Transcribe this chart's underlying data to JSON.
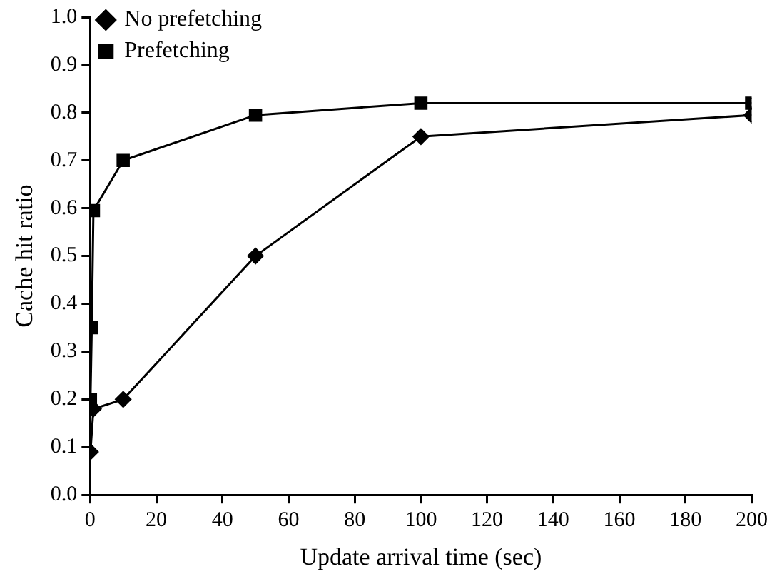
{
  "chart_data": {
    "type": "line",
    "xlabel": "Update arrival time (sec)",
    "ylabel": "Cache hit ratio",
    "xlim": [
      0,
      200
    ],
    "xticks": [
      0,
      20,
      40,
      60,
      80,
      100,
      120,
      140,
      160,
      180,
      200
    ],
    "ylim": [
      0,
      1
    ],
    "yticks": [
      {
        "value": 0,
        "label": "0.0"
      },
      0.1,
      0.2,
      0.3,
      0.4,
      0.5,
      0.6,
      0.7,
      0.8,
      0.9,
      {
        "value": 1,
        "label": "1.0"
      }
    ],
    "grid": false,
    "legend": "top left",
    "line_style": "solid",
    "series": [
      {
        "name": "No prefetching",
        "color": "#000000",
        "marker": "diamond",
        "x": [
          0.1,
          1,
          10,
          50,
          100,
          200
        ],
        "values": [
          0.09,
          0.18,
          0.2,
          0.5,
          0.75,
          0.795
        ]
      },
      {
        "name": "Prefetching",
        "color": "#000000",
        "marker": "square",
        "x": [
          0.1,
          0.5,
          1,
          10,
          50,
          100,
          200
        ],
        "values": [
          0.2,
          0.35,
          0.595,
          0.7,
          0.795,
          0.82,
          0.82
        ]
      }
    ]
  }
}
